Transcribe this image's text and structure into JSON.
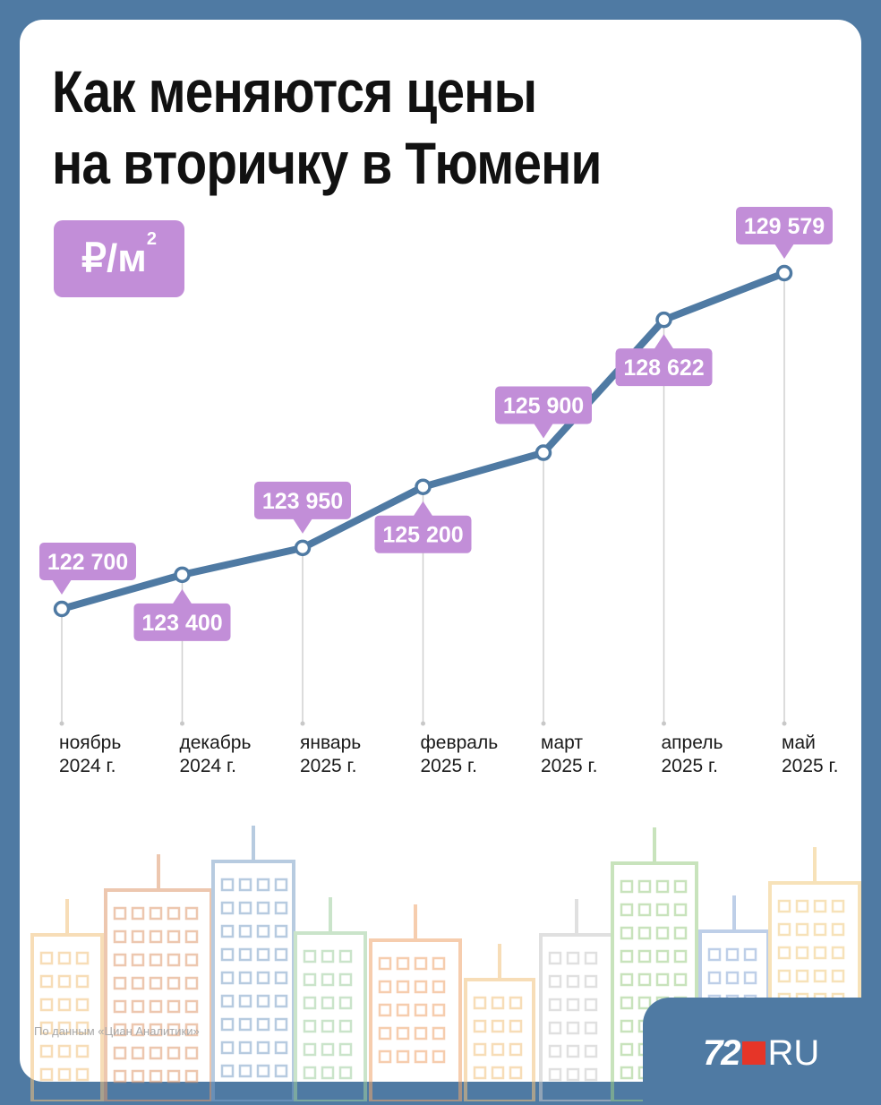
{
  "title_line1": "Как меняются цены",
  "title_line2": "на вторичку в Тюмени",
  "unit": "₽/м",
  "unit_power": "2",
  "source": "По данным «Циан Аналитики»",
  "logo": {
    "num": "72",
    "ru": "RU",
    "accent": "#e63528"
  },
  "colors": {
    "background": "#4f7aa3",
    "line": "#4f7aa3",
    "label": "#c28ed8"
  },
  "chart_data": {
    "type": "line",
    "title": "Как меняются цены на вторичку в Тюмени",
    "ylabel": "₽/м2",
    "grid": false,
    "categories": [
      [
        "ноябрь",
        "2024 г."
      ],
      [
        "декабрь",
        "2024 г."
      ],
      [
        "январь",
        "2025 г."
      ],
      [
        "февраль",
        "2025 г."
      ],
      [
        "март",
        "2025 г."
      ],
      [
        "апрель",
        "2025 г."
      ],
      [
        "май",
        "2025 г."
      ]
    ],
    "values": [
      122700,
      123400,
      123950,
      125200,
      125900,
      128622,
      129579
    ],
    "data_labels": [
      "122 700",
      "123 400",
      "123 950",
      "125 200",
      "125 900",
      "128 622",
      "129 579"
    ],
    "label_position": [
      "above",
      "below",
      "above",
      "below",
      "above",
      "below",
      "above"
    ]
  }
}
